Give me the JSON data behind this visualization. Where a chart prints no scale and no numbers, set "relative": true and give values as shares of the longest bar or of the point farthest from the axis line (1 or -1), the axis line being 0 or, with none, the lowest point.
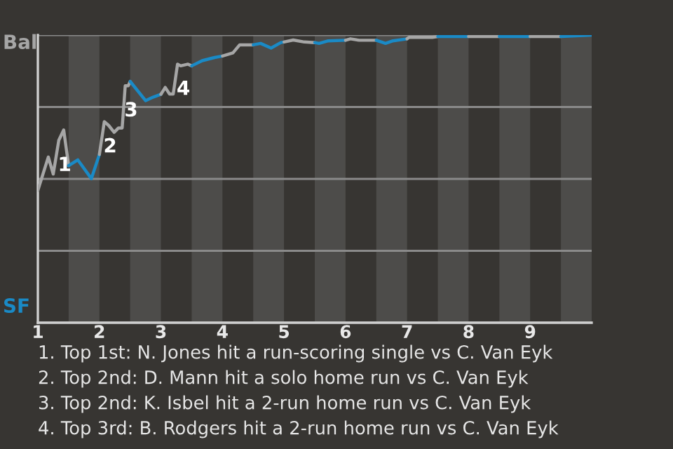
{
  "chart_data": {
    "type": "line",
    "relative": true,
    "xlim": [
      1,
      10
    ],
    "xticks": [
      1,
      2,
      3,
      4,
      5,
      6,
      7,
      8,
      9
    ],
    "grid": "y",
    "marker": "none",
    "line_style": "solid",
    "bands": [
      {
        "axis": "x",
        "from": 1.5,
        "to": 2,
        "color": "#4d4c4a"
      },
      {
        "axis": "x",
        "from": 2.5,
        "to": 3,
        "color": "#4d4c4a"
      },
      {
        "axis": "x",
        "from": 3.5,
        "to": 4,
        "color": "#4d4c4a"
      },
      {
        "axis": "x",
        "from": 4.5,
        "to": 5,
        "color": "#4d4c4a"
      },
      {
        "axis": "x",
        "from": 5.5,
        "to": 6,
        "color": "#4d4c4a"
      },
      {
        "axis": "x",
        "from": 6.5,
        "to": 7,
        "color": "#4d4c4a"
      },
      {
        "axis": "x",
        "from": 7.5,
        "to": 8,
        "color": "#4d4c4a"
      },
      {
        "axis": "x",
        "from": 8.5,
        "to": 9,
        "color": "#4d4c4a"
      },
      {
        "axis": "x",
        "from": 9.5,
        "to": 10,
        "color": "#4d4c4a"
      }
    ],
    "series": [
      {
        "color": "#a6a6a6",
        "x": [
          1.0,
          1.17,
          1.25,
          1.34,
          1.42,
          1.5
        ],
        "values": [
          0.46,
          0.576,
          0.517,
          0.634,
          0.67,
          0.546
        ]
      },
      {
        "color": "#1a8ac6",
        "x": [
          1.5,
          1.65,
          1.87,
          2.0
        ],
        "values": [
          0.546,
          0.566,
          0.501,
          0.585
        ]
      },
      {
        "color": "#a6a6a6",
        "x": [
          2.0,
          2.08,
          2.15,
          2.24,
          2.31,
          2.37,
          2.42,
          2.47,
          2.5
        ],
        "values": [
          0.585,
          0.699,
          0.686,
          0.662,
          0.677,
          0.677,
          0.824,
          0.824,
          0.839
        ]
      },
      {
        "color": "#1a8ac6",
        "x": [
          2.5,
          2.75,
          2.87,
          3.0
        ],
        "values": [
          0.839,
          0.772,
          0.784,
          0.794
        ]
      },
      {
        "color": "#a6a6a6",
        "x": [
          3.0,
          3.07,
          3.14,
          3.2,
          3.27,
          3.32,
          3.44,
          3.5
        ],
        "values": [
          0.794,
          0.818,
          0.795,
          0.795,
          0.899,
          0.893,
          0.899,
          0.893
        ]
      },
      {
        "color": "#1a8ac6",
        "x": [
          3.5,
          3.67,
          3.87,
          4.0
        ],
        "values": [
          0.893,
          0.911,
          0.922,
          0.927
        ]
      },
      {
        "color": "#a6a6a6",
        "x": [
          4.0,
          4.17,
          4.28,
          4.5
        ],
        "values": [
          0.927,
          0.938,
          0.966,
          0.966
        ]
      },
      {
        "color": "#1a8ac6",
        "x": [
          4.5,
          4.62,
          4.79,
          4.95,
          5.0
        ],
        "values": [
          0.966,
          0.971,
          0.955,
          0.974,
          0.976
        ]
      },
      {
        "color": "#a6a6a6",
        "x": [
          5.0,
          5.15,
          5.33,
          5.5
        ],
        "values": [
          0.976,
          0.983,
          0.976,
          0.974
        ]
      },
      {
        "color": "#1a8ac6",
        "x": [
          5.5,
          5.57,
          5.72,
          6.0
        ],
        "values": [
          0.974,
          0.971,
          0.98,
          0.982
        ]
      },
      {
        "color": "#a6a6a6",
        "x": [
          6.0,
          6.08,
          6.22,
          6.5
        ],
        "values": [
          0.982,
          0.987,
          0.982,
          0.982
        ]
      },
      {
        "color": "#1a8ac6",
        "x": [
          6.5,
          6.65,
          6.77,
          7.0
        ],
        "values": [
          0.982,
          0.971,
          0.98,
          0.987
        ]
      },
      {
        "color": "#a6a6a6",
        "x": [
          7.0,
          7.03,
          7.41,
          7.5
        ],
        "values": [
          0.987,
          0.992,
          0.992,
          0.995
        ]
      },
      {
        "color": "#1a8ac6",
        "x": [
          7.5,
          8.0
        ],
        "values": [
          0.995,
          0.995
        ]
      },
      {
        "color": "#a6a6a6",
        "x": [
          8.0,
          8.5
        ],
        "values": [
          0.995,
          0.995
        ]
      },
      {
        "color": "#1a8ac6",
        "x": [
          8.5,
          9.0
        ],
        "values": [
          0.995,
          0.995
        ]
      },
      {
        "color": "#a6a6a6",
        "x": [
          9.0,
          9.5
        ],
        "values": [
          0.995,
          0.995
        ]
      },
      {
        "color": "#1a8ac6",
        "x": [
          9.5,
          10.0
        ],
        "values": [
          0.995,
          1.0
        ]
      }
    ],
    "annotations": [
      {
        "text": "1",
        "x": 1.34,
        "y": 0.634
      },
      {
        "text": "2",
        "x": 2.08,
        "y": 0.699
      },
      {
        "text": "3",
        "x": 2.42,
        "y": 0.824
      },
      {
        "text": "4",
        "x": 3.27,
        "y": 0.899
      },
      "Bal",
      "SF",
      "1. Top 1st: N. Jones hit a run-scoring single vs C. Van Eyk",
      "2. Top 2nd: D. Mann hit a solo home run vs C. Van Eyk",
      "3. Top 2nd: K. Isbel hit a 2-run home run vs C. Van Eyk",
      "4. Top 3rd: B. Rodgers hit a 2-run home run vs C. Van Eyk"
    ]
  }
}
